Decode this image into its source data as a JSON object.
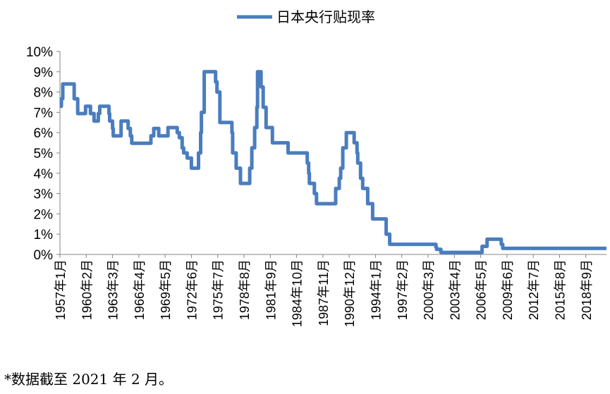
{
  "chart_data": {
    "type": "line",
    "series": [
      {
        "name": "日本央行贴现率",
        "color": "#4a7dbf",
        "points": [
          [
            "1957-01",
            7.3
          ],
          [
            "1957-03",
            7.67
          ],
          [
            "1957-05",
            8.4
          ],
          [
            "1958-06",
            8.4
          ],
          [
            "1958-09",
            7.67
          ],
          [
            "1959-02",
            6.94
          ],
          [
            "1959-12",
            6.94
          ],
          [
            "1960-01",
            7.3
          ],
          [
            "1960-08",
            6.94
          ],
          [
            "1961-01",
            6.57
          ],
          [
            "1961-07",
            6.94
          ],
          [
            "1961-09",
            7.3
          ],
          [
            "1962-10",
            6.94
          ],
          [
            "1962-11",
            6.57
          ],
          [
            "1963-03",
            6.21
          ],
          [
            "1963-04",
            5.84
          ],
          [
            "1964-03",
            6.57
          ],
          [
            "1965-01",
            6.21
          ],
          [
            "1965-04",
            5.84
          ],
          [
            "1965-06",
            5.48
          ],
          [
            "1967-09",
            5.84
          ],
          [
            "1968-01",
            6.21
          ],
          [
            "1968-08",
            5.84
          ],
          [
            "1969-09",
            6.25
          ],
          [
            "1970-10",
            6.0
          ],
          [
            "1971-01",
            5.75
          ],
          [
            "1971-05",
            5.25
          ],
          [
            "1971-07",
            5.0
          ],
          [
            "1971-12",
            4.75
          ],
          [
            "1972-06",
            4.25
          ],
          [
            "1973-04",
            5.0
          ],
          [
            "1973-07",
            6.0
          ],
          [
            "1973-08",
            7.0
          ],
          [
            "1973-12",
            9.0
          ],
          [
            "1975-04",
            8.5
          ],
          [
            "1975-06",
            8.0
          ],
          [
            "1975-10",
            6.5
          ],
          [
            "1977-03",
            6.0
          ],
          [
            "1977-04",
            5.0
          ],
          [
            "1977-09",
            4.25
          ],
          [
            "1978-03",
            3.5
          ],
          [
            "1979-04",
            4.25
          ],
          [
            "1979-07",
            5.25
          ],
          [
            "1979-11",
            6.25
          ],
          [
            "1980-02",
            7.25
          ],
          [
            "1980-03",
            9.0
          ],
          [
            "1980-08",
            8.25
          ],
          [
            "1980-11",
            7.25
          ],
          [
            "1981-03",
            6.25
          ],
          [
            "1981-12",
            5.5
          ],
          [
            "1983-10",
            5.0
          ],
          [
            "1986-01",
            4.5
          ],
          [
            "1986-03",
            4.0
          ],
          [
            "1986-04",
            3.5
          ],
          [
            "1986-11",
            3.0
          ],
          [
            "1987-02",
            2.5
          ],
          [
            "1989-05",
            3.25
          ],
          [
            "1989-10",
            3.75
          ],
          [
            "1989-12",
            4.25
          ],
          [
            "1990-03",
            5.25
          ],
          [
            "1990-08",
            6.0
          ],
          [
            "1991-07",
            5.5
          ],
          [
            "1991-11",
            5.0
          ],
          [
            "1991-12",
            4.5
          ],
          [
            "1992-04",
            3.75
          ],
          [
            "1992-07",
            3.25
          ],
          [
            "1993-02",
            2.5
          ],
          [
            "1993-09",
            1.75
          ],
          [
            "1995-04",
            1.0
          ],
          [
            "1995-09",
            0.5
          ],
          [
            "2001-01",
            0.5
          ],
          [
            "2001-02",
            0.35
          ],
          [
            "2001-03",
            0.25
          ],
          [
            "2001-09",
            0.1
          ],
          [
            "2006-07",
            0.4
          ],
          [
            "2007-02",
            0.75
          ],
          [
            "2008-10",
            0.5
          ],
          [
            "2008-12",
            0.3
          ],
          [
            "2021-02",
            0.3
          ]
        ]
      }
    ],
    "x_tick_labels": [
      "1957年1月",
      "1960年2月",
      "1963年3月",
      "1966年4月",
      "1969年5月",
      "1972年6月",
      "1975年7月",
      "1978年8月",
      "1981年9月",
      "1984年10月",
      "1987年11月",
      "1990年12月",
      "1994年1月",
      "1997年2月",
      "2000年3月",
      "2003年4月",
      "2006年5月",
      "2009年6月",
      "2012年7月",
      "2015年8月",
      "2018年9月"
    ],
    "x_range": [
      "1957-01",
      "2021-02"
    ],
    "y_ticks": [
      0,
      1,
      2,
      3,
      4,
      5,
      6,
      7,
      8,
      9,
      10
    ],
    "y_tick_labels": [
      "0%",
      "1%",
      "2%",
      "3%",
      "4%",
      "5%",
      "6%",
      "7%",
      "8%",
      "9%",
      "10%"
    ],
    "ylim": [
      0,
      10
    ],
    "grid": false,
    "legend_position": "top-center",
    "footnote": "*数据截至 2021 年 2 月。"
  }
}
